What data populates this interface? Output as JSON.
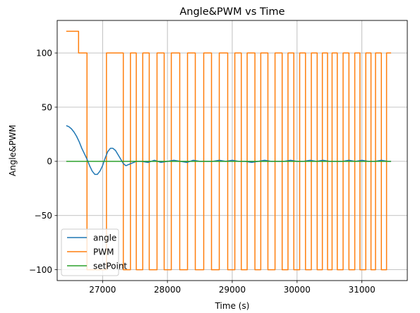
{
  "chart_data": {
    "type": "line",
    "title": "Angle&PWM vs Time",
    "xlabel": "Time (s)",
    "ylabel": "Angle&PWM",
    "xlim": [
      26300,
      31700
    ],
    "ylim": [
      -110,
      130
    ],
    "xticks": [
      27000,
      28000,
      29000,
      30000,
      31000
    ],
    "xtick_labels": [
      "27000",
      "28000",
      "29000",
      "30000",
      "31000"
    ],
    "yticks": [
      -100,
      -50,
      0,
      50,
      100
    ],
    "ytick_labels": [
      "−100",
      "−50",
      "0",
      "50",
      "100"
    ],
    "grid": true,
    "legend_position": "lower-left",
    "series": [
      {
        "name": "angle",
        "color": "#1f77b4",
        "x": [
          26440,
          26480,
          26520,
          26560,
          26600,
          26640,
          26680,
          26720,
          26760,
          26800,
          26840,
          26880,
          26920,
          26960,
          27000,
          27040,
          27080,
          27120,
          27160,
          27200,
          27240,
          27280,
          27320,
          27360,
          27400,
          27440,
          27480,
          27520,
          27600,
          27700,
          27800,
          27900,
          28000,
          28100,
          28200,
          28300,
          28400,
          28500,
          28600,
          28700,
          28800,
          28900,
          29000,
          29100,
          29200,
          29300,
          29400,
          29500,
          29600,
          29700,
          29800,
          29900,
          30000,
          30100,
          30200,
          30300,
          30400,
          30500,
          30600,
          30700,
          30800,
          30900,
          31000,
          31100,
          31200,
          31300,
          31400,
          31450
        ],
        "y": [
          33,
          32,
          30,
          27,
          23,
          18,
          12,
          7,
          2,
          -4,
          -9,
          -12,
          -12,
          -9,
          -4,
          3,
          9,
          12,
          12,
          10,
          6,
          2,
          -2,
          -4,
          -3,
          -2,
          -1,
          0,
          0,
          -1,
          1,
          -1,
          0,
          1,
          0,
          -1,
          1,
          0,
          0,
          0,
          1,
          0,
          1,
          0,
          0,
          -1,
          0,
          1,
          0,
          0,
          0,
          1,
          0,
          0,
          1,
          0,
          1,
          0,
          0,
          0,
          1,
          0,
          1,
          0,
          0,
          1,
          0,
          0
        ]
      },
      {
        "name": "PWM",
        "color": "#ff7f0e",
        "x": [
          26440,
          26600,
          26630,
          26740,
          26760,
          26830,
          27060,
          27100,
          27320,
          27350,
          27430,
          27460,
          27520,
          27560,
          27620,
          27660,
          27720,
          27760,
          27840,
          27870,
          27950,
          27990,
          28060,
          28100,
          28190,
          28230,
          28310,
          28360,
          28430,
          28480,
          28560,
          28610,
          28680,
          28720,
          28800,
          28850,
          28930,
          28970,
          29040,
          29080,
          29140,
          29180,
          29230,
          29280,
          29350,
          29390,
          29440,
          29480,
          29550,
          29600,
          29660,
          29700,
          29770,
          29810,
          29860,
          29900,
          29950,
          29990,
          30040,
          30080,
          30130,
          30170,
          30220,
          30260,
          30310,
          30350,
          30390,
          30420,
          30470,
          30500,
          30540,
          30570,
          30620,
          30660,
          30710,
          30750,
          30800,
          30840,
          30890,
          30930,
          30970,
          31010,
          31060,
          31100,
          31140,
          31180,
          31210,
          31250,
          31300,
          31340,
          31380,
          31420,
          31450
        ],
        "y": [
          120,
          120,
          100,
          100,
          -100,
          -100,
          100,
          100,
          -100,
          -100,
          100,
          100,
          -100,
          -100,
          100,
          100,
          -100,
          -100,
          100,
          100,
          -100,
          -100,
          100,
          100,
          -100,
          -100,
          100,
          100,
          -100,
          -100,
          100,
          100,
          -100,
          -100,
          100,
          100,
          -100,
          -100,
          100,
          100,
          -100,
          -100,
          100,
          100,
          -100,
          -100,
          100,
          100,
          -100,
          -100,
          100,
          100,
          -100,
          -100,
          100,
          100,
          -100,
          -100,
          100,
          100,
          -100,
          -100,
          100,
          100,
          -100,
          -100,
          100,
          100,
          -100,
          -100,
          100,
          100,
          -100,
          -100,
          100,
          100,
          -100,
          -100,
          100,
          100,
          -100,
          -100,
          100,
          100,
          -100,
          -100,
          100,
          100,
          -100,
          -100,
          100,
          100,
          100
        ],
        "step": true
      },
      {
        "name": "setPoint",
        "color": "#2ca02c",
        "x": [
          26440,
          31450
        ],
        "y": [
          0,
          0
        ]
      }
    ]
  }
}
